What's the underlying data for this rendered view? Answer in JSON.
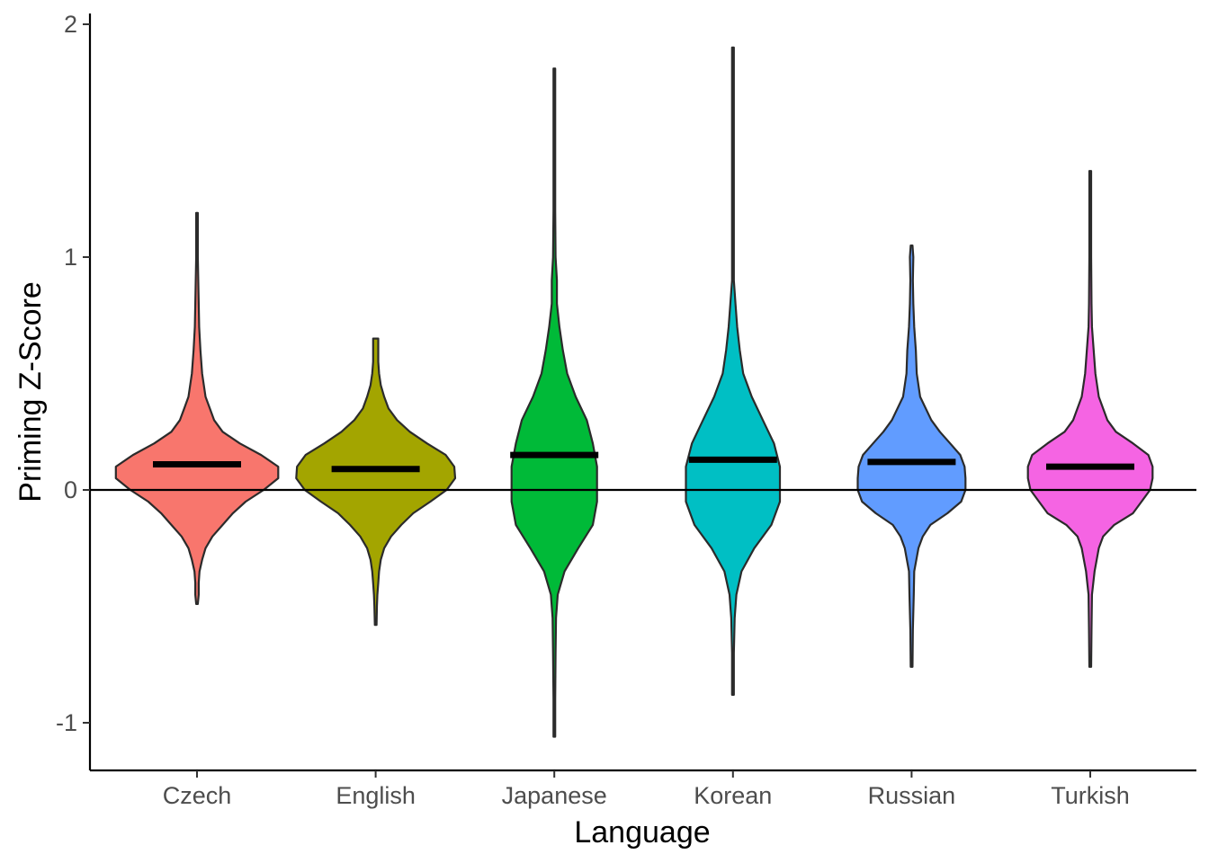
{
  "chart_data": {
    "type": "violin",
    "xlabel": "Language",
    "ylabel": "Priming Z-Score",
    "ylim": [
      -1.2,
      2.05
    ],
    "yticks": [
      -1,
      0,
      1,
      2
    ],
    "ytick_labels": [
      "-1",
      "0",
      "1",
      "2"
    ],
    "reference_line_y": 0,
    "grid": false,
    "categories": [
      "Czech",
      "English",
      "Japanese",
      "Korean",
      "Russian",
      "Turkish"
    ],
    "series": [
      {
        "category": "Czech",
        "color": "#F8766D",
        "mean": 0.11,
        "min": -0.49,
        "max": 1.19,
        "density": [
          [
            -0.49,
            0.01
          ],
          [
            -0.45,
            0.02
          ],
          [
            -0.4,
            0.02
          ],
          [
            -0.35,
            0.03
          ],
          [
            -0.3,
            0.06
          ],
          [
            -0.25,
            0.1
          ],
          [
            -0.2,
            0.18
          ],
          [
            -0.15,
            0.3
          ],
          [
            -0.1,
            0.42
          ],
          [
            -0.05,
            0.57
          ],
          [
            0.0,
            0.78
          ],
          [
            0.05,
            0.95
          ],
          [
            0.1,
            0.95
          ],
          [
            0.15,
            0.75
          ],
          [
            0.2,
            0.5
          ],
          [
            0.25,
            0.3
          ],
          [
            0.3,
            0.2
          ],
          [
            0.35,
            0.15
          ],
          [
            0.4,
            0.1
          ],
          [
            0.5,
            0.06
          ],
          [
            0.6,
            0.04
          ],
          [
            0.7,
            0.025
          ],
          [
            0.8,
            0.02
          ],
          [
            0.9,
            0.015
          ],
          [
            1.0,
            0.01
          ],
          [
            1.1,
            0.01
          ],
          [
            1.19,
            0.01
          ]
        ]
      },
      {
        "category": "English",
        "color": "#A3A500",
        "mean": 0.09,
        "min": -0.58,
        "max": 0.65,
        "density": [
          [
            -0.58,
            0.01
          ],
          [
            -0.5,
            0.015
          ],
          [
            -0.45,
            0.02
          ],
          [
            -0.4,
            0.03
          ],
          [
            -0.35,
            0.04
          ],
          [
            -0.3,
            0.06
          ],
          [
            -0.25,
            0.1
          ],
          [
            -0.2,
            0.18
          ],
          [
            -0.15,
            0.3
          ],
          [
            -0.1,
            0.44
          ],
          [
            -0.05,
            0.64
          ],
          [
            0.0,
            0.83
          ],
          [
            0.05,
            0.93
          ],
          [
            0.1,
            0.92
          ],
          [
            0.15,
            0.82
          ],
          [
            0.2,
            0.6
          ],
          [
            0.25,
            0.4
          ],
          [
            0.3,
            0.25
          ],
          [
            0.35,
            0.15
          ],
          [
            0.4,
            0.1
          ],
          [
            0.45,
            0.06
          ],
          [
            0.5,
            0.04
          ],
          [
            0.55,
            0.03
          ],
          [
            0.6,
            0.03
          ],
          [
            0.65,
            0.03
          ]
        ]
      },
      {
        "category": "Japanese",
        "color": "#00BA38",
        "mean": 0.15,
        "min": -1.06,
        "max": 1.81,
        "density": [
          [
            -1.06,
            0.01
          ],
          [
            -0.9,
            0.01
          ],
          [
            -0.7,
            0.015
          ],
          [
            -0.55,
            0.02
          ],
          [
            -0.45,
            0.04
          ],
          [
            -0.35,
            0.12
          ],
          [
            -0.25,
            0.28
          ],
          [
            -0.15,
            0.45
          ],
          [
            -0.05,
            0.5
          ],
          [
            0.0,
            0.5
          ],
          [
            0.1,
            0.5
          ],
          [
            0.2,
            0.45
          ],
          [
            0.3,
            0.38
          ],
          [
            0.4,
            0.25
          ],
          [
            0.5,
            0.15
          ],
          [
            0.6,
            0.1
          ],
          [
            0.7,
            0.06
          ],
          [
            0.8,
            0.03
          ],
          [
            0.9,
            0.03
          ],
          [
            1.0,
            0.015
          ],
          [
            1.2,
            0.01
          ],
          [
            1.5,
            0.01
          ],
          [
            1.81,
            0.01
          ]
        ]
      },
      {
        "category": "Korean",
        "color": "#00BFC4",
        "mean": 0.13,
        "min": -0.88,
        "max": 1.9,
        "density": [
          [
            -0.88,
            0.01
          ],
          [
            -0.7,
            0.01
          ],
          [
            -0.55,
            0.02
          ],
          [
            -0.45,
            0.04
          ],
          [
            -0.35,
            0.1
          ],
          [
            -0.25,
            0.25
          ],
          [
            -0.15,
            0.45
          ],
          [
            -0.05,
            0.55
          ],
          [
            0.0,
            0.55
          ],
          [
            0.1,
            0.55
          ],
          [
            0.2,
            0.48
          ],
          [
            0.3,
            0.35
          ],
          [
            0.4,
            0.22
          ],
          [
            0.5,
            0.12
          ],
          [
            0.6,
            0.08
          ],
          [
            0.7,
            0.05
          ],
          [
            0.8,
            0.03
          ],
          [
            0.9,
            0.01
          ],
          [
            1.1,
            0.01
          ],
          [
            1.5,
            0.01
          ],
          [
            1.9,
            0.01
          ]
        ]
      },
      {
        "category": "Russian",
        "color": "#619CFF",
        "mean": 0.12,
        "min": -0.76,
        "max": 1.05,
        "density": [
          [
            -0.76,
            0.01
          ],
          [
            -0.6,
            0.015
          ],
          [
            -0.45,
            0.025
          ],
          [
            -0.35,
            0.03
          ],
          [
            -0.25,
            0.08
          ],
          [
            -0.2,
            0.13
          ],
          [
            -0.15,
            0.22
          ],
          [
            -0.1,
            0.42
          ],
          [
            -0.05,
            0.58
          ],
          [
            0.0,
            0.63
          ],
          [
            0.05,
            0.63
          ],
          [
            0.1,
            0.62
          ],
          [
            0.15,
            0.57
          ],
          [
            0.2,
            0.45
          ],
          [
            0.25,
            0.33
          ],
          [
            0.3,
            0.23
          ],
          [
            0.4,
            0.1
          ],
          [
            0.5,
            0.06
          ],
          [
            0.6,
            0.05
          ],
          [
            0.7,
            0.03
          ],
          [
            0.8,
            0.02
          ],
          [
            0.9,
            0.015
          ],
          [
            1.0,
            0.02
          ],
          [
            1.05,
            0.01
          ]
        ]
      },
      {
        "category": "Turkish",
        "color": "#F564E3",
        "mean": 0.1,
        "min": -0.76,
        "max": 1.37,
        "density": [
          [
            -0.76,
            0.01
          ],
          [
            -0.6,
            0.015
          ],
          [
            -0.45,
            0.02
          ],
          [
            -0.35,
            0.05
          ],
          [
            -0.25,
            0.1
          ],
          [
            -0.2,
            0.15
          ],
          [
            -0.15,
            0.28
          ],
          [
            -0.1,
            0.5
          ],
          [
            -0.05,
            0.6
          ],
          [
            0.0,
            0.7
          ],
          [
            0.05,
            0.73
          ],
          [
            0.1,
            0.73
          ],
          [
            0.15,
            0.68
          ],
          [
            0.2,
            0.5
          ],
          [
            0.25,
            0.3
          ],
          [
            0.3,
            0.2
          ],
          [
            0.4,
            0.1
          ],
          [
            0.5,
            0.06
          ],
          [
            0.6,
            0.04
          ],
          [
            0.7,
            0.02
          ],
          [
            0.8,
            0.015
          ],
          [
            1.0,
            0.01
          ],
          [
            1.2,
            0.01
          ],
          [
            1.37,
            0.01
          ]
        ]
      }
    ]
  }
}
